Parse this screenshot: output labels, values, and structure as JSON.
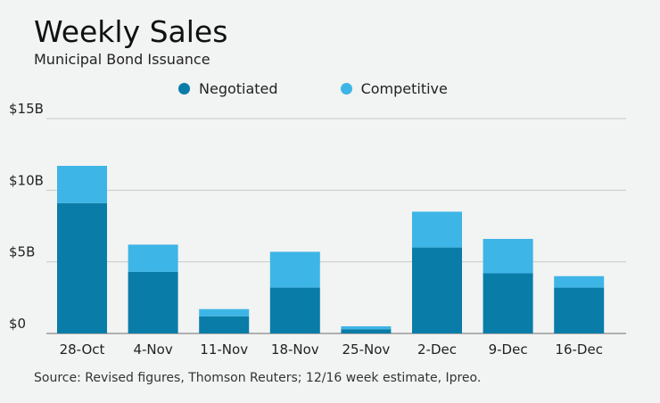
{
  "chart_data": {
    "type": "bar",
    "stacked": true,
    "title": "Weekly Sales",
    "subtitle": "Municipal Bond Issuance",
    "categories": [
      "28-Oct",
      "4-Nov",
      "11-Nov",
      "18-Nov",
      "25-Nov",
      "2-Dec",
      "9-Dec",
      "16-Dec"
    ],
    "series": [
      {
        "name": "Negotiated",
        "color": "#0a7ca8",
        "values": [
          9.1,
          4.3,
          1.2,
          3.2,
          0.3,
          6.0,
          4.2,
          3.2
        ]
      },
      {
        "name": "Competitive",
        "color": "#3db5e6",
        "values": [
          2.6,
          1.9,
          0.5,
          2.5,
          0.2,
          2.5,
          2.4,
          0.8
        ]
      }
    ],
    "yticks": [
      0,
      5,
      10,
      15
    ],
    "ytick_labels": [
      "$0",
      "$5B",
      "$10B",
      "$15B"
    ],
    "ylim": [
      0,
      15
    ],
    "grid": true,
    "legend_position": "top-center"
  },
  "source": "Source: Revised figures, Thomson Reuters; 12/16 week estimate, Ipreo."
}
